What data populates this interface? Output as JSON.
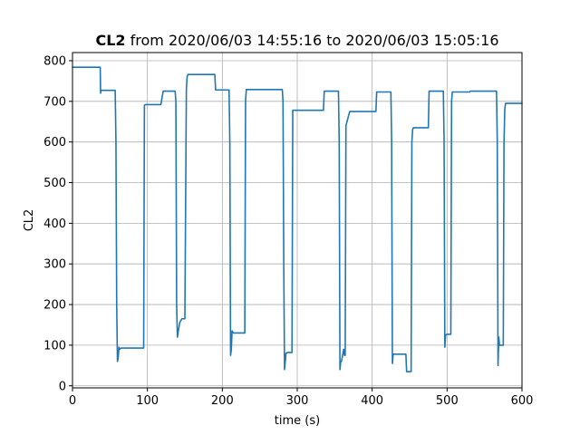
{
  "chart_data": {
    "type": "line",
    "title": {
      "bold": "CL2",
      "rest": " from 2020/06/03 14:55:16 to 2020/06/03 15:05:16"
    },
    "xlabel": "time (s)",
    "ylabel": "CL2",
    "xlim": [
      0,
      600
    ],
    "ylim": [
      -5,
      820
    ],
    "xticks": [
      0,
      100,
      200,
      300,
      400,
      500,
      600
    ],
    "yticks": [
      0,
      100,
      200,
      300,
      400,
      500,
      600,
      700,
      800
    ],
    "grid": true,
    "line_color": "#1f77b4",
    "series": [
      {
        "x": [
          0,
          37,
          37.5,
          38,
          57,
          58,
          59,
          60,
          61,
          62,
          63,
          65,
          95,
          96,
          97,
          118,
          121,
          137,
          138,
          139,
          140,
          143,
          146,
          150,
          152,
          153,
          154,
          155,
          190,
          191,
          192,
          209,
          210,
          211,
          212,
          213,
          215,
          220,
          230,
          231,
          232,
          280,
          281,
          282,
          283,
          284,
          285,
          287,
          293,
          294,
          295,
          335,
          336,
          337,
          355,
          356,
          357,
          358,
          359,
          362,
          363,
          364,
          365,
          370,
          371,
          372,
          405,
          406,
          407,
          425,
          426,
          427,
          428,
          430,
          445,
          446,
          447,
          452,
          453,
          454,
          455,
          475,
          476,
          477,
          478,
          495,
          496,
          497,
          498,
          500,
          505,
          506,
          507,
          530,
          531,
          566,
          567,
          568,
          569,
          570,
          575,
          576,
          577,
          578,
          580,
          600
        ],
        "y": [
          784,
          784,
          720,
          727,
          727,
          600,
          200,
          60,
          70,
          95,
          90,
          93,
          93,
          690,
          692,
          692,
          725,
          725,
          700,
          200,
          120,
          155,
          165,
          165,
          730,
          760,
          766,
          766,
          766,
          728,
          728,
          728,
          600,
          75,
          90,
          135,
          130,
          130,
          130,
          700,
          729,
          729,
          700,
          300,
          40,
          60,
          80,
          82,
          82,
          678,
          678,
          678,
          725,
          725,
          725,
          600,
          40,
          60,
          60,
          90,
          75,
          75,
          640,
          675,
          675,
          675,
          675,
          723,
          723,
          723,
          600,
          55,
          78,
          78,
          78,
          35,
          35,
          35,
          600,
          630,
          635,
          635,
          725,
          725,
          725,
          725,
          600,
          95,
          125,
          127,
          127,
          700,
          723,
          723,
          725,
          725,
          600,
          50,
          120,
          100,
          100,
          600,
          680,
          695,
          695,
          695
        ]
      }
    ]
  }
}
